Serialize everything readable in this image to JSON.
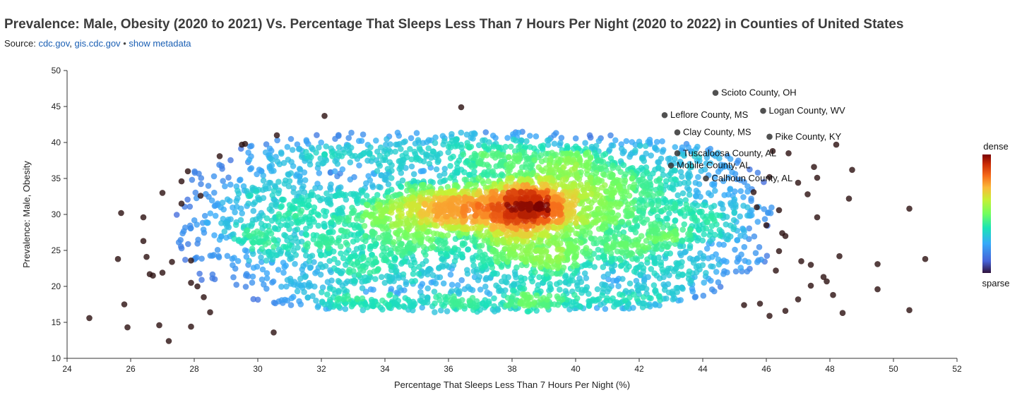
{
  "header": {
    "title": "Prevalence: Male, Obesity (2020 to 2021) Vs. Percentage That Sleeps Less Than 7 Hours Per Night (2020 to 2022) in Counties of United States",
    "source_label": "Source:",
    "source_links": [
      "cdc.gov",
      "gis.cdc.gov"
    ],
    "separator": "•",
    "metadata_link": "show metadata"
  },
  "legend": {
    "high_label": "dense",
    "low_label": "sparse"
  },
  "chart_data": {
    "type": "scatter",
    "title": "Prevalence: Male, Obesity (2020 to 2021) Vs. Percentage That Sleeps Less Than 7 Hours Per Night (2020 to 2022) in Counties of United States",
    "xlabel": "Percentage That Sleeps Less Than 7 Hours Per Night (%)",
    "ylabel": "Prevalence: Male, Obesity",
    "xlim": [
      24,
      52
    ],
    "ylim": [
      10,
      50
    ],
    "xticks": [
      24,
      26,
      28,
      30,
      32,
      34,
      36,
      38,
      40,
      42,
      44,
      46,
      48,
      50,
      52
    ],
    "yticks": [
      10,
      15,
      20,
      25,
      30,
      35,
      40,
      45,
      50
    ],
    "color_scale": "density",
    "colors": {
      "sparse": "#2b0f0f",
      "dense": "#8b0a0a"
    },
    "annotations": [
      {
        "label": "Scioto County, OH",
        "x": 44.4,
        "y": 46.9
      },
      {
        "label": "Logan County, WV",
        "x": 45.9,
        "y": 44.4
      },
      {
        "label": "Leflore County, MS",
        "x": 42.8,
        "y": 43.8
      },
      {
        "label": "Clay County, MS",
        "x": 43.2,
        "y": 41.4
      },
      {
        "label": "Pike County, KY",
        "x": 46.1,
        "y": 40.8
      },
      {
        "label": "Tuscaloosa County, AL",
        "x": 43.2,
        "y": 38.5
      },
      {
        "label": "Mobile County, AL",
        "x": 43.0,
        "y": 36.8
      },
      {
        "label": "Calhoun County, AL",
        "x": 44.1,
        "y": 35.0
      }
    ],
    "outliers": [
      {
        "x": 24.7,
        "y": 15.6
      },
      {
        "x": 25.7,
        "y": 30.2
      },
      {
        "x": 25.6,
        "y": 23.8
      },
      {
        "x": 25.8,
        "y": 17.5
      },
      {
        "x": 25.9,
        "y": 14.3
      },
      {
        "x": 26.4,
        "y": 29.6
      },
      {
        "x": 26.4,
        "y": 26.3
      },
      {
        "x": 26.5,
        "y": 24.1
      },
      {
        "x": 26.6,
        "y": 21.7
      },
      {
        "x": 26.7,
        "y": 21.5
      },
      {
        "x": 26.9,
        "y": 14.6
      },
      {
        "x": 27.0,
        "y": 33.0
      },
      {
        "x": 27.0,
        "y": 21.9
      },
      {
        "x": 27.2,
        "y": 12.4
      },
      {
        "x": 27.3,
        "y": 23.4
      },
      {
        "x": 27.6,
        "y": 34.6
      },
      {
        "x": 27.6,
        "y": 31.5
      },
      {
        "x": 27.8,
        "y": 36.0
      },
      {
        "x": 27.9,
        "y": 23.6
      },
      {
        "x": 27.9,
        "y": 20.5
      },
      {
        "x": 27.9,
        "y": 14.4
      },
      {
        "x": 28.1,
        "y": 20.0
      },
      {
        "x": 28.2,
        "y": 32.6
      },
      {
        "x": 28.3,
        "y": 18.5
      },
      {
        "x": 28.5,
        "y": 16.4
      },
      {
        "x": 28.8,
        "y": 38.1
      },
      {
        "x": 29.6,
        "y": 39.8
      },
      {
        "x": 30.5,
        "y": 13.6
      },
      {
        "x": 30.6,
        "y": 41.0
      },
      {
        "x": 32.1,
        "y": 43.7
      },
      {
        "x": 36.4,
        "y": 44.9
      },
      {
        "x": 45.6,
        "y": 33.1
      },
      {
        "x": 45.7,
        "y": 31.0
      },
      {
        "x": 46.0,
        "y": 28.5
      },
      {
        "x": 46.1,
        "y": 35.2
      },
      {
        "x": 46.2,
        "y": 38.8
      },
      {
        "x": 46.4,
        "y": 30.6
      },
      {
        "x": 46.5,
        "y": 27.4
      },
      {
        "x": 46.6,
        "y": 27.0
      },
      {
        "x": 46.6,
        "y": 16.6
      },
      {
        "x": 46.7,
        "y": 38.5
      },
      {
        "x": 47.0,
        "y": 34.4
      },
      {
        "x": 47.3,
        "y": 32.8
      },
      {
        "x": 47.4,
        "y": 23.0
      },
      {
        "x": 47.4,
        "y": 20.1
      },
      {
        "x": 47.5,
        "y": 36.6
      },
      {
        "x": 47.6,
        "y": 35.1
      },
      {
        "x": 47.6,
        "y": 29.6
      },
      {
        "x": 47.8,
        "y": 21.3
      },
      {
        "x": 47.9,
        "y": 20.7
      },
      {
        "x": 48.1,
        "y": 18.8
      },
      {
        "x": 48.2,
        "y": 39.7
      },
      {
        "x": 48.3,
        "y": 24.2
      },
      {
        "x": 48.4,
        "y": 16.3
      },
      {
        "x": 48.6,
        "y": 32.2
      },
      {
        "x": 48.7,
        "y": 36.2
      },
      {
        "x": 49.5,
        "y": 23.1
      },
      {
        "x": 49.5,
        "y": 19.6
      },
      {
        "x": 50.5,
        "y": 30.8
      },
      {
        "x": 50.5,
        "y": 16.7
      },
      {
        "x": 51.0,
        "y": 23.8
      },
      {
        "x": 47.0,
        "y": 18.2
      },
      {
        "x": 45.3,
        "y": 17.4
      },
      {
        "x": 46.1,
        "y": 15.9
      },
      {
        "x": 45.8,
        "y": 17.6
      },
      {
        "x": 46.4,
        "y": 24.9
      },
      {
        "x": 47.1,
        "y": 23.5
      },
      {
        "x": 46.3,
        "y": 22.2
      },
      {
        "x": 29.5,
        "y": 39.7
      }
    ],
    "density_regions": [
      {
        "cx": 37.2,
        "cy": 29.0,
        "sx": 4.6,
        "sy": 6.2,
        "n": 1900
      },
      {
        "cx": 35.8,
        "cy": 30.8,
        "sx": 1.4,
        "sy": 2.2,
        "n": 420
      },
      {
        "cx": 38.5,
        "cy": 31.3,
        "sx": 1.1,
        "sy": 2.6,
        "n": 520
      },
      {
        "cx": 38.6,
        "cy": 24.0,
        "sx": 0.9,
        "sy": 4.5,
        "n": 260
      },
      {
        "cx": 40.8,
        "cy": 33.5,
        "sx": 1.2,
        "sy": 2.0,
        "n": 180
      },
      {
        "cx": 37.5,
        "cy": 17.5,
        "sx": 4.8,
        "sy": 0.6,
        "n": 330
      },
      {
        "cx": 31.5,
        "cy": 27.0,
        "sx": 1.5,
        "sy": 6.5,
        "n": 320
      },
      {
        "cx": 43.0,
        "cy": 27.0,
        "sx": 1.3,
        "sy": 6.5,
        "n": 320
      },
      {
        "cx": 33.8,
        "cy": 22.0,
        "sx": 1.4,
        "sy": 3.0,
        "n": 150
      },
      {
        "cx": 41.3,
        "cy": 23.0,
        "sx": 1.1,
        "sy": 3.6,
        "n": 160
      },
      {
        "cx": 37.3,
        "cy": 38.8,
        "sx": 4.5,
        "sy": 1.7,
        "n": 420
      },
      {
        "cx": 29.6,
        "cy": 29.0,
        "sx": 1.2,
        "sy": 6.0,
        "n": 110
      },
      {
        "cx": 44.8,
        "cy": 30.0,
        "sx": 1.1,
        "sy": 6.0,
        "n": 110
      }
    ]
  }
}
